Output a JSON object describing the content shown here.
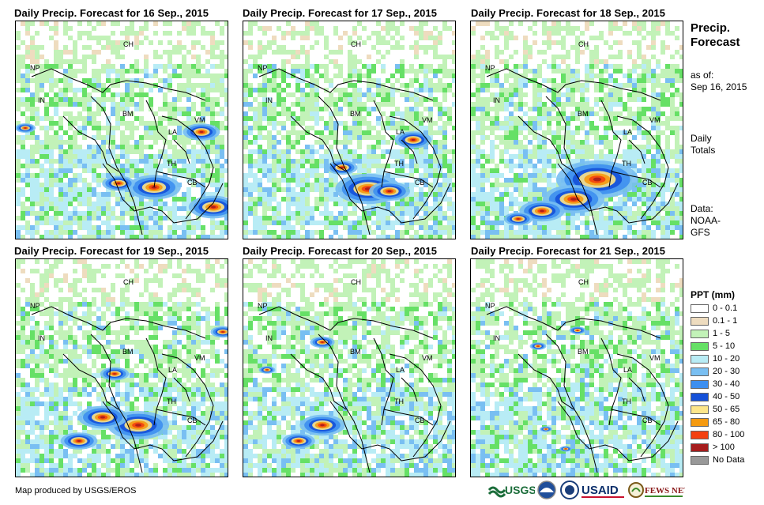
{
  "panels": [
    {
      "title": "Daily Precip. Forecast for 16 Sep., 2015"
    },
    {
      "title": "Daily Precip. Forecast for 17 Sep., 2015"
    },
    {
      "title": "Daily Precip. Forecast for 18 Sep., 2015"
    },
    {
      "title": "Daily Precip. Forecast for 19 Sep., 2015"
    },
    {
      "title": "Daily Precip. Forecast for 20 Sep., 2015"
    },
    {
      "title": "Daily Precip. Forecast for 21 Sep., 2015"
    }
  ],
  "country_labels": [
    "CH",
    "NP",
    "IN",
    "BM",
    "LA",
    "VM",
    "TH",
    "CB"
  ],
  "sidebar": {
    "title_line1": "Precip.",
    "title_line2": "Forecast",
    "asof_label": "as of:",
    "asof_date": "Sep 16, 2015",
    "totals_line1": "Daily",
    "totals_line2": "Totals",
    "data_line1": "Data:",
    "data_line2": "NOAA-",
    "data_line3": "GFS"
  },
  "legend": {
    "title": "PPT (mm)",
    "items": [
      {
        "label": "0 - 0.1",
        "color": "#ffffff"
      },
      {
        "label": "0.1 - 1",
        "color": "#eedcbf"
      },
      {
        "label": "1 - 5",
        "color": "#c2f2b8"
      },
      {
        "label": "5 - 10",
        "color": "#66e066"
      },
      {
        "label": "10 - 20",
        "color": "#b8ecf5"
      },
      {
        "label": "20 - 30",
        "color": "#79bff2"
      },
      {
        "label": "30 - 40",
        "color": "#3d8ff0"
      },
      {
        "label": "40 - 50",
        "color": "#1550d8"
      },
      {
        "label": "50 - 65",
        "color": "#fde68a"
      },
      {
        "label": "65 - 80",
        "color": "#f59a10"
      },
      {
        "label": "80 - 100",
        "color": "#f34010"
      },
      {
        "label": "> 100",
        "color": "#a61c1c"
      },
      {
        "label": "No Data",
        "color": "#999999"
      }
    ]
  },
  "footer": {
    "credit": "Map produced by USGS/EROS"
  },
  "logos": {
    "usgs": "USGS",
    "usaid": "USAID",
    "fews": "FEWS NET"
  }
}
